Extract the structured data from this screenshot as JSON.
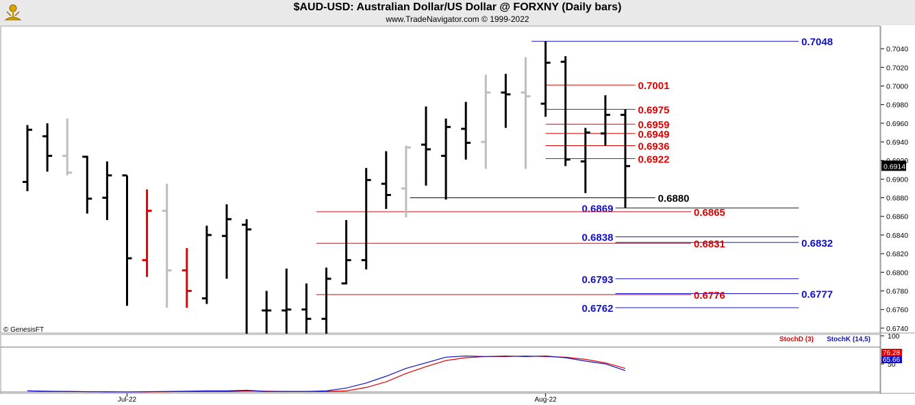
{
  "header": {
    "title": "$AUD-USD:  Australian Dollar/US Dollar @ FORXNY  (Daily bars)",
    "subtitle": "www.TradeNavigator.com © 1999-2022"
  },
  "copyright": "© GenesisFT",
  "colors": {
    "bar_up": "#000000",
    "bar_gray": "#bdbdbd",
    "bar_red": "#e00000",
    "level_blue": "#1010c8",
    "level_red": "#e00000",
    "stochD": "#e00000",
    "stochK": "#1010c8"
  },
  "chart_data": [
    {
      "type": "ohlc",
      "title": "$AUD-USD:  Australian Dollar/US Dollar @ FORXNY  (Daily bars)",
      "x_labels": [
        "Jul-22",
        "Aug-22"
      ],
      "y_ticks": [
        "0.7040",
        "0.7020",
        "0.7000",
        "0.6980",
        "0.6960",
        "0.6940",
        "0.6920",
        "0.6900",
        "0.6880",
        "0.6860",
        "0.6840",
        "0.6820",
        "0.6800",
        "0.6780",
        "0.6760",
        "0.6740"
      ],
      "ylim": [
        0.6734,
        0.7057
      ],
      "last_price": "0.6914",
      "bars": [
        {
          "o": 0.6897,
          "h": 0.6958,
          "l": 0.6887,
          "c": 0.6953,
          "color": "black"
        },
        {
          "o": 0.6946,
          "h": 0.696,
          "l": 0.6908,
          "c": 0.6925,
          "color": "black"
        },
        {
          "o": 0.6925,
          "h": 0.6965,
          "l": 0.6904,
          "c": 0.6907,
          "color": "gray"
        },
        {
          "o": 0.6924,
          "h": 0.6925,
          "l": 0.6863,
          "c": 0.6879,
          "color": "black"
        },
        {
          "o": 0.688,
          "h": 0.6919,
          "l": 0.6856,
          "c": 0.6904,
          "color": "black"
        },
        {
          "o": 0.6904,
          "h": 0.6904,
          "l": 0.6764,
          "c": 0.6815,
          "color": "black"
        },
        {
          "o": 0.6813,
          "h": 0.6889,
          "l": 0.6795,
          "c": 0.6866,
          "color": "red"
        },
        {
          "o": 0.6866,
          "h": 0.6895,
          "l": 0.6762,
          "c": 0.6802,
          "color": "gray"
        },
        {
          "o": 0.6802,
          "h": 0.6826,
          "l": 0.6762,
          "c": 0.678,
          "color": "red"
        },
        {
          "o": 0.6772,
          "h": 0.685,
          "l": 0.6766,
          "c": 0.684,
          "color": "black"
        },
        {
          "o": 0.6839,
          "h": 0.6873,
          "l": 0.6793,
          "c": 0.6857,
          "color": "black"
        },
        {
          "o": 0.6851,
          "h": 0.6857,
          "l": 0.6734,
          "c": 0.6846,
          "color": "black"
        },
        {
          "o": 0.6759,
          "h": 0.678,
          "l": 0.6734,
          "c": 0.6759,
          "color": "black"
        },
        {
          "o": 0.6759,
          "h": 0.6804,
          "l": 0.6734,
          "c": 0.676,
          "color": "black"
        },
        {
          "o": 0.676,
          "h": 0.6788,
          "l": 0.6734,
          "c": 0.675,
          "color": "black"
        },
        {
          "o": 0.675,
          "h": 0.6805,
          "l": 0.6734,
          "c": 0.6793,
          "color": "black"
        },
        {
          "o": 0.6788,
          "h": 0.6856,
          "l": 0.6787,
          "c": 0.6813,
          "color": "black"
        },
        {
          "o": 0.6813,
          "h": 0.6912,
          "l": 0.6803,
          "c": 0.6899,
          "color": "black"
        },
        {
          "o": 0.6895,
          "h": 0.693,
          "l": 0.6868,
          "c": 0.6883,
          "color": "black"
        },
        {
          "o": 0.689,
          "h": 0.6936,
          "l": 0.6859,
          "c": 0.6934,
          "color": "gray"
        },
        {
          "o": 0.6937,
          "h": 0.6978,
          "l": 0.6893,
          "c": 0.6932,
          "color": "black"
        },
        {
          "o": 0.6925,
          "h": 0.6965,
          "l": 0.6878,
          "c": 0.6956,
          "color": "black"
        },
        {
          "o": 0.6954,
          "h": 0.6983,
          "l": 0.6921,
          "c": 0.6939,
          "color": "black"
        },
        {
          "o": 0.694,
          "h": 0.7012,
          "l": 0.6911,
          "c": 0.6993,
          "color": "gray"
        },
        {
          "o": 0.6993,
          "h": 0.7013,
          "l": 0.6955,
          "c": 0.6991,
          "color": "black"
        },
        {
          "o": 0.6993,
          "h": 0.7031,
          "l": 0.6911,
          "c": 0.6989,
          "color": "gray"
        },
        {
          "o": 0.6981,
          "h": 0.7048,
          "l": 0.6967,
          "c": 0.7025,
          "color": "black"
        },
        {
          "o": 0.7026,
          "h": 0.7032,
          "l": 0.6914,
          "c": 0.6921,
          "color": "black"
        },
        {
          "o": 0.6919,
          "h": 0.6955,
          "l": 0.6885,
          "c": 0.695,
          "color": "black"
        },
        {
          "o": 0.6949,
          "h": 0.699,
          "l": 0.6936,
          "c": 0.6969,
          "color": "black"
        },
        {
          "o": 0.6969,
          "h": 0.6975,
          "l": 0.6869,
          "c": 0.6914,
          "color": "black"
        }
      ],
      "levels": [
        {
          "value": 0.7048,
          "label": "0.7048",
          "color": "blue",
          "from": 25.3,
          "to": 38.7,
          "label_side": "right"
        },
        {
          "value": 0.7001,
          "label": "0.7001",
          "color": "red",
          "from": 26,
          "to": 30.5,
          "label_side": "right"
        },
        {
          "value": 0.6975,
          "label": "0.6975",
          "color": "red",
          "from": 26,
          "to": 30.5,
          "label_side": "right"
        },
        {
          "value": 0.6959,
          "label": "0.6959",
          "color": "red",
          "from": 26,
          "to": 30.5,
          "label_side": "right"
        },
        {
          "value": 0.6949,
          "label": "0.6949",
          "color": "red",
          "from": 26,
          "to": 30.5,
          "label_side": "right"
        },
        {
          "value": 0.6936,
          "label": "0.6936",
          "color": "red",
          "from": 26,
          "to": 30.5,
          "label_side": "right"
        },
        {
          "value": 0.6922,
          "label": "0.6922",
          "color": "red",
          "from": 26,
          "to": 30.5,
          "label_side": "right"
        },
        {
          "value": 0.688,
          "label": "0.6880",
          "color": "black",
          "from": 19.2,
          "to": 31.5,
          "label_side": "right"
        },
        {
          "value": 0.6869,
          "label": "0.6869",
          "color": "blue",
          "from": 29.5,
          "to": 38.7,
          "label_side": "left"
        },
        {
          "value": 0.6865,
          "label": "0.6865",
          "color": "red",
          "from": 14.5,
          "to": 33.3,
          "label_side": "right"
        },
        {
          "value": 0.6838,
          "label": "0.6838",
          "color": "blue",
          "from": 29.5,
          "to": 38.7,
          "label_side": "left"
        },
        {
          "value": 0.6832,
          "label": "0.6832",
          "color": "blue",
          "from": 29.5,
          "to": 38.7,
          "label_side": "right"
        },
        {
          "value": 0.6831,
          "label": "0.6831",
          "color": "red",
          "from": 14.5,
          "to": 33.3,
          "label_side": "right"
        },
        {
          "value": 0.6793,
          "label": "0.6793",
          "color": "blue",
          "from": 29.5,
          "to": 38.7,
          "label_side": "left"
        },
        {
          "value": 0.6777,
          "label": "0.6777",
          "color": "blue",
          "from": 29.5,
          "to": 38.7,
          "label_side": "right"
        },
        {
          "value": 0.6776,
          "label": "0.6776",
          "color": "red",
          "from": 14.5,
          "to": 33.3,
          "label_side": "right"
        },
        {
          "value": 0.6762,
          "label": "0.6762",
          "color": "blue",
          "from": 29.5,
          "to": 38.7,
          "label_side": "left"
        }
      ]
    },
    {
      "type": "line",
      "series": [
        {
          "name": "StochD (3)",
          "color": "red",
          "values": [
            2,
            1,
            1,
            0.5,
            0.5,
            0,
            0,
            0.5,
            1,
            1,
            1,
            2,
            1.5,
            1,
            1,
            1,
            2,
            8,
            18,
            33,
            45,
            56,
            61,
            63,
            63,
            64,
            63,
            62,
            58,
            52,
            42
          ]
        },
        {
          "name": "StochK (14,5)",
          "color": "blue",
          "values": [
            2,
            1.5,
            1,
            0.5,
            0,
            0,
            0.5,
            1,
            1.5,
            2,
            2,
            3,
            1,
            1,
            1,
            2,
            7,
            16,
            28,
            42,
            52,
            62,
            64,
            63,
            64,
            63,
            64,
            61,
            55,
            50,
            38
          ]
        }
      ],
      "ylim": [
        0,
        100
      ],
      "y_ticks": [
        "100",
        "50"
      ],
      "readouts": [
        "76.28",
        "65.66"
      ]
    }
  ]
}
